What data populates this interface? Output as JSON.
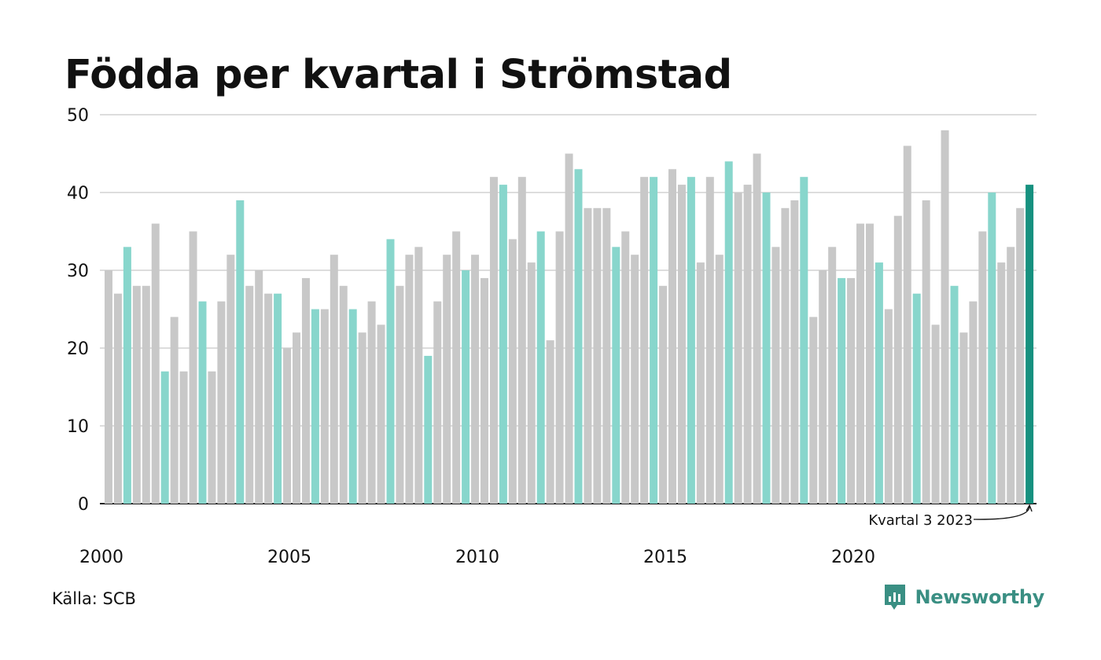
{
  "title": "Födda per kvartal i Strömstad",
  "source": "Källa: SCB",
  "brand": "Newsworthy",
  "colors": {
    "bar": "#c8c8c8",
    "highlight": "#88d6cc",
    "latest": "#16917f",
    "grid": "#dddddd",
    "axis": "#222222",
    "brand": "#3a8f83"
  },
  "chart_data": {
    "type": "bar",
    "title": "Födda per kvartal i Strömstad",
    "xlabel": "",
    "ylabel": "",
    "ylim": [
      0,
      50
    ],
    "yticks": [
      0,
      10,
      20,
      30,
      40,
      50
    ],
    "xticks": [
      "2000",
      "2005",
      "2010",
      "2015",
      "2020"
    ],
    "grid": true,
    "start_year": 2000,
    "annotation": "Kvartal 3 2023",
    "highlight_quarter": 3,
    "values": [
      30,
      27,
      33,
      28,
      28,
      36,
      17,
      24,
      17,
      35,
      26,
      17,
      26,
      32,
      39,
      28,
      30,
      27,
      27,
      20,
      22,
      29,
      25,
      25,
      32,
      28,
      25,
      22,
      26,
      23,
      34,
      28,
      32,
      33,
      19,
      26,
      32,
      35,
      30,
      32,
      29,
      42,
      41,
      34,
      42,
      31,
      35,
      21,
      35,
      45,
      43,
      38,
      38,
      38,
      33,
      35,
      32,
      42,
      42,
      28,
      43,
      41,
      42,
      31,
      42,
      32,
      44,
      40,
      41,
      45,
      40,
      33,
      38,
      39,
      42,
      24,
      30,
      33,
      29,
      29,
      36,
      36,
      31,
      25,
      37,
      46,
      27,
      39,
      23,
      48,
      28,
      22,
      26,
      35,
      40,
      31,
      33,
      38,
      41
    ]
  }
}
